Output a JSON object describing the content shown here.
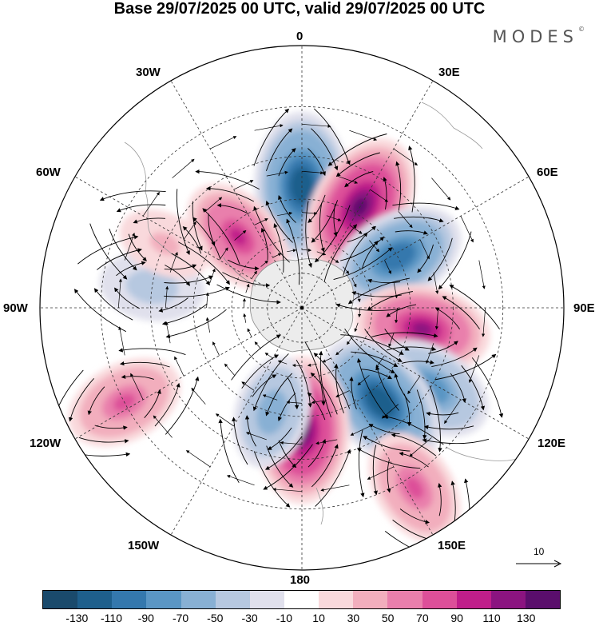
{
  "header": {
    "title": "Base 29/07/2025 00 UTC, valid 29/07/2025 00 UTC",
    "brand": "MODES",
    "brand_mark": "©"
  },
  "map": {
    "projection": "south-polar-stereographic",
    "longitude_labels": [
      "0",
      "30E",
      "60E",
      "90E",
      "120E",
      "150E",
      "180",
      "150W",
      "120W",
      "90W",
      "60W",
      "30W"
    ],
    "reference_vector": {
      "value": "10"
    },
    "anomaly_centers": [
      {
        "lon": 0,
        "lat": -40,
        "value": -130
      },
      {
        "lon": 30,
        "lat": -42,
        "value": 130
      },
      {
        "lon": 62,
        "lat": -45,
        "value": -110
      },
      {
        "lon": 100,
        "lat": -40,
        "value": 110
      },
      {
        "lon": 122,
        "lat": -30,
        "value": -90
      },
      {
        "lon": 140,
        "lat": -40,
        "value": -130
      },
      {
        "lon": 148,
        "lat": -12,
        "value": 70
      },
      {
        "lon": 180,
        "lat": -40,
        "value": 130
      },
      {
        "lon": -164,
        "lat": -45,
        "value": -70
      },
      {
        "lon": -118,
        "lat": -15,
        "value": 70
      },
      {
        "lon": -82,
        "lat": -30,
        "value": -50
      },
      {
        "lon": -42,
        "lat": -50,
        "value": 90
      },
      {
        "lon": -65,
        "lat": -30,
        "value": 30
      }
    ]
  },
  "colorbar": {
    "ticks": [
      "-130",
      "-110",
      "-90",
      "-70",
      "-50",
      "-30",
      "-10",
      "10",
      "30",
      "50",
      "70",
      "90",
      "110",
      "130"
    ],
    "colors": [
      "#1a4a6c",
      "#1e5f8c",
      "#3478ad",
      "#5a96c4",
      "#88b0d4",
      "#b6c8e0",
      "#e0e0ec",
      "#ffffff",
      "#f9d9dc",
      "#f2aebd",
      "#e97fac",
      "#dd4f99",
      "#c01e8a",
      "#8b1480",
      "#5a0e6c"
    ]
  }
}
